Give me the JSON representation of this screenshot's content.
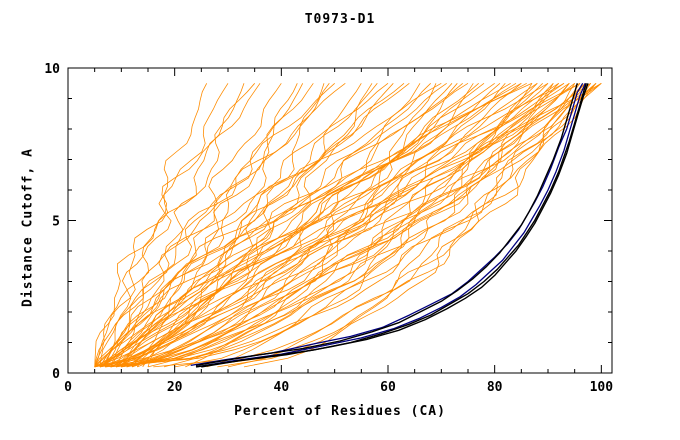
{
  "chart_data": {
    "type": "line",
    "title": "T0973-D1",
    "xlabel": "Percent of Residues (CA)",
    "ylabel": "Distance Cutoff, A",
    "xlim": [
      0,
      102
    ],
    "ylim": [
      0,
      10
    ],
    "xticks": [
      0,
      20,
      40,
      60,
      80,
      100
    ],
    "yticks": [
      0,
      5,
      10
    ],
    "x_minor_step": 5,
    "y_minor_step": 1,
    "grid": false,
    "legend": "none",
    "colors": {
      "prediction": "#ff8c00",
      "best_model": "#000000",
      "reference": "#000080"
    },
    "prediction_curve_format": "[start_x_at_y0.2, end_x_at_y9.5, shape_exponent, seed] ; x(y)=s+(e-s)*t^a, t=(y-0.2)/9.3",
    "prediction_curves": [
      [
        5,
        26,
        1.0,
        1
      ],
      [
        6,
        30,
        1.15,
        2
      ],
      [
        8,
        33,
        0.9,
        3
      ],
      [
        5,
        36,
        1.25,
        4
      ],
      [
        7,
        40,
        1.0,
        5
      ],
      [
        9,
        43,
        0.8,
        6
      ],
      [
        6,
        46,
        1.1,
        7
      ],
      [
        10,
        49,
        0.95,
        8
      ],
      [
        5,
        52,
        1.3,
        9
      ],
      [
        8,
        55,
        0.7,
        10
      ],
      [
        12,
        58,
        1.05,
        11
      ],
      [
        6,
        61,
        0.85,
        12
      ],
      [
        9,
        64,
        1.2,
        13
      ],
      [
        5,
        66,
        0.6,
        14
      ],
      [
        11,
        68,
        0.95,
        15
      ],
      [
        7,
        70,
        1.35,
        16
      ],
      [
        13,
        72,
        0.75,
        17
      ],
      [
        6,
        74,
        1.0,
        18
      ],
      [
        10,
        76,
        0.55,
        19
      ],
      [
        5,
        78,
        0.9,
        20
      ],
      [
        14,
        80,
        1.15,
        21
      ],
      [
        8,
        82,
        0.65,
        22
      ],
      [
        6,
        84,
        1.0,
        23
      ],
      [
        12,
        85,
        0.8,
        24
      ],
      [
        5,
        86,
        1.25,
        25
      ],
      [
        9,
        87,
        0.5,
        26
      ],
      [
        7,
        88,
        0.95,
        27
      ],
      [
        15,
        89,
        0.7,
        28
      ],
      [
        6,
        90,
        1.1,
        29
      ],
      [
        10,
        91,
        0.6,
        30
      ],
      [
        5,
        92,
        0.85,
        31
      ],
      [
        13,
        93,
        1.2,
        32
      ],
      [
        8,
        94,
        0.55,
        33
      ],
      [
        6,
        95,
        0.75,
        34
      ],
      [
        11,
        96,
        1.0,
        35
      ],
      [
        5,
        97,
        0.65,
        36
      ],
      [
        9,
        98,
        0.9,
        37
      ],
      [
        7,
        99,
        0.5,
        38
      ],
      [
        12,
        100,
        0.8,
        39
      ],
      [
        6,
        100,
        1.05,
        40
      ],
      [
        16,
        95,
        0.45,
        41
      ],
      [
        20,
        92,
        0.6,
        42
      ],
      [
        24,
        96,
        0.5,
        43
      ],
      [
        28,
        98,
        0.55,
        44
      ],
      [
        33,
        99,
        0.6,
        45
      ],
      [
        18,
        88,
        0.7,
        46
      ],
      [
        22,
        90,
        0.85,
        47
      ],
      [
        26,
        94,
        0.75,
        48
      ],
      [
        30,
        97,
        0.65,
        49
      ],
      [
        15,
        85,
        1.3,
        50
      ],
      [
        5,
        44,
        0.75,
        51
      ],
      [
        7,
        50,
        1.4,
        52
      ],
      [
        9,
        57,
        0.6,
        53
      ],
      [
        6,
        63,
        1.15,
        54
      ],
      [
        8,
        69,
        0.5,
        55
      ],
      [
        10,
        75,
        1.25,
        56
      ],
      [
        5,
        81,
        0.7,
        57
      ],
      [
        7,
        87,
        1.45,
        58
      ],
      [
        9,
        93,
        0.95,
        59
      ],
      [
        11,
        99,
        0.7,
        60
      ],
      [
        5,
        35,
        1.5,
        61
      ],
      [
        6,
        48,
        0.55,
        62
      ],
      [
        8,
        60,
        1.35,
        63
      ],
      [
        10,
        73,
        0.6,
        64
      ],
      [
        5,
        83,
        1.1,
        65
      ],
      [
        7,
        91,
        0.45,
        66
      ],
      [
        9,
        96,
        1.2,
        67
      ],
      [
        6,
        100,
        0.6,
        68
      ],
      [
        8,
        77,
        0.9,
        69
      ],
      [
        10,
        98,
        0.75,
        70
      ],
      [
        5,
        71,
        1.05,
        71
      ],
      [
        7,
        94,
        0.85,
        72
      ]
    ],
    "highlight_curves": [
      {
        "name": "reference-curve-1",
        "color": "#000080",
        "width": 1.3,
        "points": [
          [
            24,
            0.2
          ],
          [
            31,
            0.4
          ],
          [
            40,
            0.62
          ],
          [
            48,
            0.9
          ],
          [
            55,
            1.15
          ],
          [
            61,
            1.45
          ],
          [
            66,
            1.8
          ],
          [
            70,
            2.15
          ],
          [
            73.5,
            2.5
          ],
          [
            76.5,
            2.9
          ],
          [
            79,
            3.3
          ],
          [
            81.5,
            3.7
          ],
          [
            83.5,
            4.15
          ],
          [
            85.5,
            4.6
          ],
          [
            87,
            5.05
          ],
          [
            88.5,
            5.5
          ],
          [
            90,
            6.0
          ],
          [
            91.5,
            6.6
          ],
          [
            93,
            7.3
          ],
          [
            94,
            7.9
          ],
          [
            95,
            8.5
          ],
          [
            96,
            9.1
          ],
          [
            97,
            9.5
          ]
        ]
      },
      {
        "name": "reference-curve-2",
        "color": "#000080",
        "width": 1.3,
        "points": [
          [
            23,
            0.25
          ],
          [
            30,
            0.45
          ],
          [
            38,
            0.65
          ],
          [
            46,
            0.95
          ],
          [
            53,
            1.2
          ],
          [
            59,
            1.5
          ],
          [
            64,
            1.9
          ],
          [
            68,
            2.25
          ],
          [
            72,
            2.6
          ],
          [
            75,
            3.0
          ],
          [
            77.5,
            3.4
          ],
          [
            80,
            3.8
          ],
          [
            82.5,
            4.25
          ],
          [
            84.5,
            4.7
          ],
          [
            86,
            5.15
          ],
          [
            87.5,
            5.6
          ],
          [
            89,
            6.1
          ],
          [
            90.5,
            6.7
          ],
          [
            92,
            7.4
          ],
          [
            93.5,
            8.0
          ],
          [
            94.5,
            8.6
          ],
          [
            95.5,
            9.2
          ],
          [
            96.5,
            9.5
          ]
        ]
      },
      {
        "name": "best-model-curve-1",
        "color": "#000000",
        "width": 1.4,
        "points": [
          [
            24,
            0.2
          ],
          [
            30,
            0.35
          ],
          [
            38,
            0.55
          ],
          [
            46,
            0.75
          ],
          [
            53,
            1.0
          ],
          [
            59,
            1.3
          ],
          [
            64,
            1.6
          ],
          [
            68,
            1.9
          ],
          [
            72,
            2.3
          ],
          [
            75,
            2.6
          ],
          [
            78,
            3.0
          ],
          [
            80.5,
            3.4
          ],
          [
            82.5,
            3.8
          ],
          [
            84.5,
            4.2
          ],
          [
            86,
            4.6
          ],
          [
            87.5,
            5.0
          ],
          [
            89,
            5.5
          ],
          [
            90.5,
            6.0
          ],
          [
            92,
            6.6
          ],
          [
            93,
            7.1
          ],
          [
            94,
            7.6
          ],
          [
            95,
            8.2
          ],
          [
            96,
            8.8
          ],
          [
            96.8,
            9.3
          ],
          [
            97.2,
            9.5
          ]
        ]
      },
      {
        "name": "best-model-curve-2",
        "color": "#000000",
        "width": 1.4,
        "points": [
          [
            25,
            0.2
          ],
          [
            32,
            0.4
          ],
          [
            41,
            0.6
          ],
          [
            49,
            0.85
          ],
          [
            56,
            1.1
          ],
          [
            62,
            1.4
          ],
          [
            67,
            1.75
          ],
          [
            71,
            2.1
          ],
          [
            74.5,
            2.45
          ],
          [
            77.5,
            2.8
          ],
          [
            80,
            3.2
          ],
          [
            82,
            3.6
          ],
          [
            84,
            4.0
          ],
          [
            86,
            4.5
          ],
          [
            87.5,
            4.9
          ],
          [
            89,
            5.4
          ],
          [
            90.5,
            5.9
          ],
          [
            92,
            6.5
          ],
          [
            93.5,
            7.2
          ],
          [
            94.5,
            7.8
          ],
          [
            95.5,
            8.4
          ],
          [
            96.5,
            9.0
          ],
          [
            97.5,
            9.5
          ]
        ]
      },
      {
        "name": "best-model-curve-3",
        "color": "#000000",
        "width": 1.4,
        "points": [
          [
            24,
            0.25
          ],
          [
            29,
            0.4
          ],
          [
            36,
            0.6
          ],
          [
            44,
            0.8
          ],
          [
            51,
            1.05
          ],
          [
            57,
            1.35
          ],
          [
            62,
            1.65
          ],
          [
            66,
            2.0
          ],
          [
            70,
            2.35
          ],
          [
            73,
            2.7
          ],
          [
            76,
            3.1
          ],
          [
            78.5,
            3.5
          ],
          [
            81,
            3.95
          ],
          [
            83,
            4.4
          ],
          [
            85,
            4.85
          ],
          [
            86.5,
            5.3
          ],
          [
            88,
            5.8
          ],
          [
            89.5,
            6.4
          ],
          [
            91,
            7.0
          ],
          [
            92.5,
            7.7
          ],
          [
            93.5,
            8.3
          ],
          [
            94.5,
            8.9
          ],
          [
            95.5,
            9.5
          ]
        ]
      }
    ]
  }
}
